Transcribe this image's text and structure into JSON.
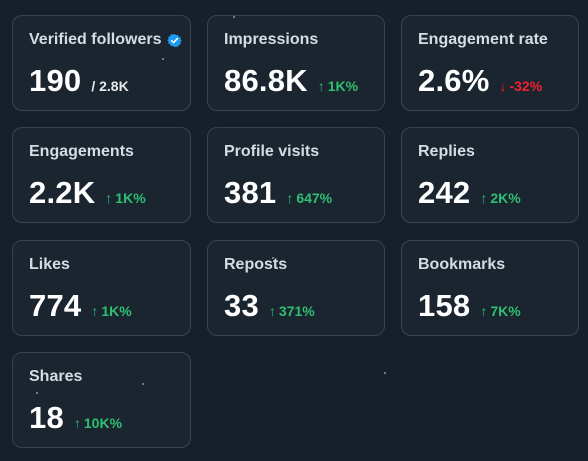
{
  "colors": {
    "background": "#15202b",
    "card_background": "#1a2530",
    "card_border": "#38444d",
    "positive": "#2fbf71",
    "negative": "#f4212e",
    "verified": "#1d9bf0"
  },
  "metrics": [
    {
      "label": "Verified followers",
      "value": "190",
      "sub": "/ 2.8K",
      "change": "",
      "direction": "none",
      "badge": "verified-icon"
    },
    {
      "label": "Impressions",
      "value": "86.8K",
      "sub": "",
      "change": "1K%",
      "direction": "up"
    },
    {
      "label": "Engagement rate",
      "value": "2.6%",
      "sub": "",
      "change": "-32%",
      "direction": "down"
    },
    {
      "label": "Engagements",
      "value": "2.2K",
      "sub": "",
      "change": "1K%",
      "direction": "up"
    },
    {
      "label": "Profile visits",
      "value": "381",
      "sub": "",
      "change": "647%",
      "direction": "up"
    },
    {
      "label": "Replies",
      "value": "242",
      "sub": "",
      "change": "2K%",
      "direction": "up"
    },
    {
      "label": "Likes",
      "value": "774",
      "sub": "",
      "change": "1K%",
      "direction": "up"
    },
    {
      "label": "Reposts",
      "value": "33",
      "sub": "",
      "change": "371%",
      "direction": "up"
    },
    {
      "label": "Bookmarks",
      "value": "158",
      "sub": "",
      "change": "7K%",
      "direction": "up"
    },
    {
      "label": "Shares",
      "value": "18",
      "sub": "",
      "change": "10K%",
      "direction": "up"
    }
  ]
}
